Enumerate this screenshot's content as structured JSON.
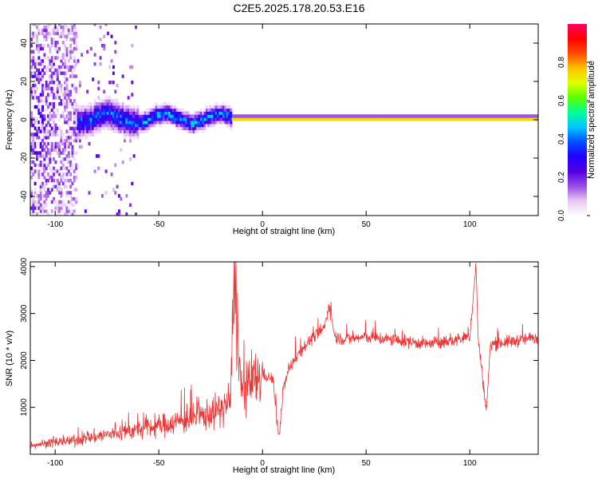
{
  "title": "C2E5.2025.178.20.53.E16",
  "chart_data": [
    {
      "type": "heatmap",
      "xlabel": "Height of straight line (km)",
      "ylabel": "Frequency (Hz)",
      "xlim": [
        -112,
        133
      ],
      "ylim": [
        -50,
        50
      ],
      "xticks": [
        -100,
        -50,
        0,
        50,
        100
      ],
      "yticks": [
        -40,
        -20,
        0,
        20,
        40
      ],
      "colorbar": {
        "label": "Normalized spectral amplitude",
        "range": [
          0,
          1
        ],
        "ticks": [
          0.0,
          0.2,
          0.4,
          0.6,
          0.8
        ],
        "tick_labels": [
          "0.0",
          "0.2",
          "0.4",
          "0.6",
          "0.8"
        ],
        "colormap": [
          "#ffffff",
          "#e6c8f0",
          "#9a4be8",
          "#5000e0",
          "#2000ff",
          "#0050ff",
          "#00c8ff",
          "#00ff9a",
          "#5aff00",
          "#e0ff00",
          "#ffc000",
          "#ff4a00",
          "#ff0000",
          "#ff0060"
        ]
      },
      "features": [
        {
          "x_range": [
            -112,
            -90
          ],
          "freq_spread": 50,
          "amplitude": 0.25
        },
        {
          "x_range": [
            -90,
            -60
          ],
          "freq_spread": 8,
          "amplitude": 0.4
        },
        {
          "x_range": [
            -60,
            -15
          ],
          "freq_spread": 5,
          "amplitude": 0.45
        },
        {
          "x_range": [
            -15,
            133
          ],
          "freq_spread": 1,
          "amplitude": 0.9
        }
      ]
    },
    {
      "type": "line",
      "xlabel": "Height of straight line (km)",
      "ylabel": "SNR (10 * v/v)",
      "xlim": [
        -112,
        133
      ],
      "ylim": [
        0,
        4100
      ],
      "xticks": [
        -100,
        -50,
        0,
        50,
        100
      ],
      "yticks": [
        1000,
        2000,
        3000,
        4000
      ],
      "color": "#ee3333",
      "series": [
        {
          "x": [
            -112,
            -100,
            -90,
            -80,
            -70,
            -60,
            -50,
            -40,
            -30,
            -20,
            -15,
            -14,
            -10,
            -5,
            0,
            5,
            8,
            10,
            12,
            15,
            20,
            25,
            30,
            32,
            35,
            40,
            50,
            60,
            70,
            80,
            90,
            100,
            103,
            104,
            108,
            110,
            120,
            133
          ],
          "values": [
            200,
            250,
            300,
            380,
            450,
            520,
            600,
            700,
            800,
            950,
            1200,
            3900,
            1300,
            1500,
            1700,
            1600,
            300,
            1400,
            1700,
            2000,
            2300,
            2500,
            2700,
            3200,
            2500,
            2450,
            2500,
            2450,
            2400,
            2350,
            2400,
            2500,
            4050,
            2500,
            900,
            2350,
            2400,
            2500
          ]
        }
      ]
    }
  ]
}
